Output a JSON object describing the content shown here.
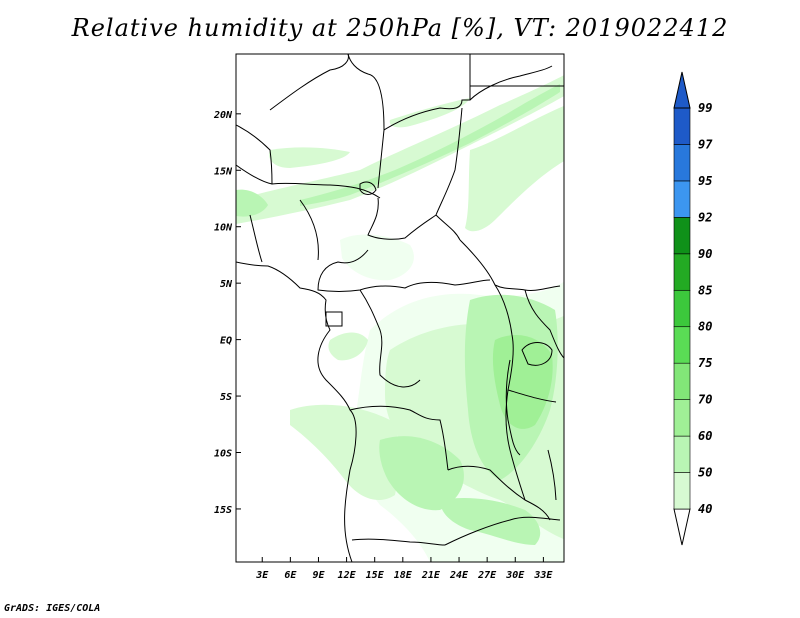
{
  "title": "Relative humidity at 250hPa [%], VT: 2019022412",
  "footer": "GrADS: IGES/COLA",
  "colors": {
    "c40": "#f0fff0",
    "c50": "#d7fad2",
    "c60": "#b9f5b4",
    "c70": "#a0f096",
    "c75": "#82e678",
    "c80": "#5adc55",
    "c85": "#3cc83c",
    "c90": "#23aa23",
    "c92": "#0f9119",
    "c95": "#3c96f0",
    "c97": "#2878dc",
    "c99": "#1e5ac8"
  },
  "chart_data": {
    "type": "heatmap",
    "title": "Relative humidity at 250hPa [%], VT: 2019022412",
    "xlabel": "",
    "ylabel": "",
    "x_ticks": [
      "3E",
      "6E",
      "9E",
      "12E",
      "15E",
      "18E",
      "21E",
      "24E",
      "27E",
      "30E",
      "33E"
    ],
    "x_tick_values": [
      3,
      6,
      9,
      12,
      15,
      18,
      21,
      24,
      27,
      30,
      33
    ],
    "y_ticks": [
      "20N",
      "15N",
      "10N",
      "5N",
      "EQ",
      "5S",
      "10S",
      "15S"
    ],
    "y_tick_values": [
      20,
      15,
      10,
      5,
      0,
      -5,
      -10,
      -15
    ],
    "xlim": [
      0.2,
      35.2
    ],
    "ylim": [
      -19.7,
      25.3
    ],
    "colorbar": {
      "levels": [
        40,
        50,
        60,
        70,
        75,
        80,
        85,
        90,
        92,
        95,
        97,
        99
      ],
      "labels": [
        "40",
        "50",
        "60",
        "70",
        "75",
        "80",
        "85",
        "90",
        "92",
        "95",
        "97",
        "99"
      ]
    }
  }
}
